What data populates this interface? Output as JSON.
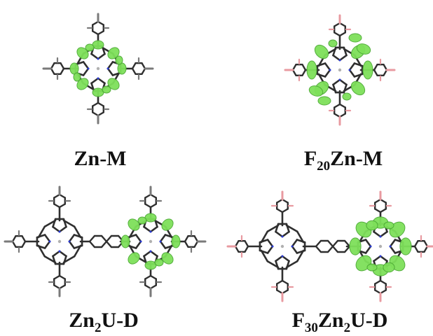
{
  "figure": {
    "panels": [
      {
        "id": "zn-m",
        "label": {
          "main": "Zn-M",
          "parts": [
            {
              "t": "Zn-M",
              "sub": false
            }
          ]
        }
      },
      {
        "id": "f20zn-m",
        "label": {
          "main": "F20Zn-M",
          "parts": [
            {
              "t": "F",
              "sub": false
            },
            {
              "t": "20",
              "sub": true
            },
            {
              "t": "Zn-M",
              "sub": false
            }
          ]
        }
      },
      {
        "id": "zn2u-d",
        "label": {
          "main": "Zn2U-D",
          "parts": [
            {
              "t": "Zn",
              "sub": false
            },
            {
              "t": "2",
              "sub": true
            },
            {
              "t": "U-D",
              "sub": false
            }
          ]
        }
      },
      {
        "id": "f30zn2u-d",
        "label": {
          "main": "F30Zn2U-D",
          "parts": [
            {
              "t": "F",
              "sub": false
            },
            {
              "t": "30",
              "sub": true
            },
            {
              "t": "Zn",
              "sub": false
            },
            {
              "t": "2",
              "sub": true
            },
            {
              "t": "U-D",
              "sub": false
            }
          ]
        }
      }
    ],
    "colors": {
      "orbital": "#7ee05a",
      "orbital_edge": "#4caa35",
      "bond": "#2f2f2f",
      "nitrogen": "#2b3bd6",
      "fluorine": "#e89aa0",
      "hydrogen": "#d9d9d9",
      "metal": "#b0b0b0"
    }
  }
}
